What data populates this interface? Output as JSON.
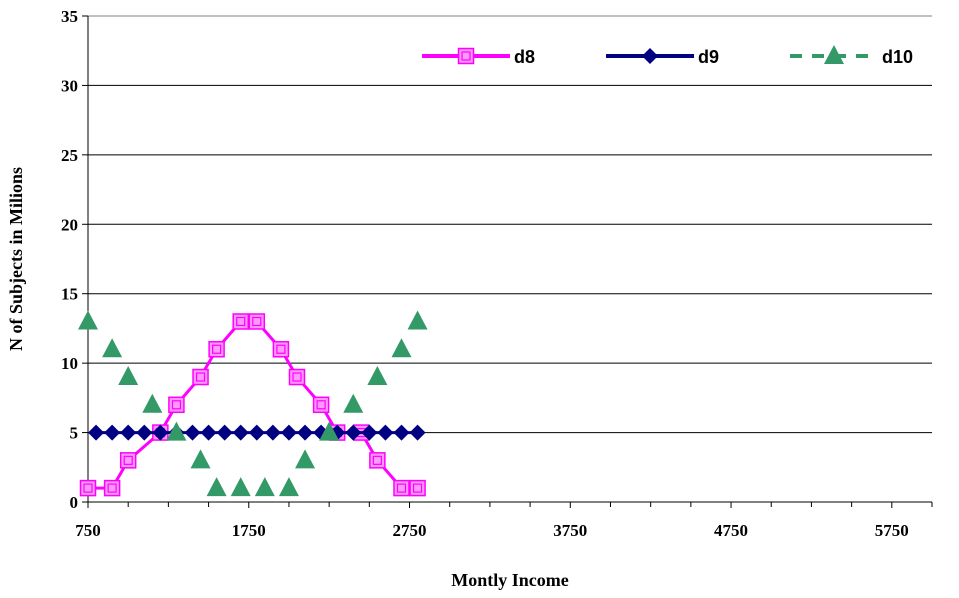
{
  "chart_data": {
    "type": "line",
    "title": "",
    "xlabel": "Montly Income",
    "ylabel": "N of Subjects in Milions",
    "xlim": [
      750,
      6000
    ],
    "ylim": [
      0,
      35
    ],
    "x_ticks": [
      750,
      1750,
      2750,
      3750,
      4750,
      5750
    ],
    "y_ticks": [
      0,
      5,
      10,
      15,
      20,
      25,
      30,
      35
    ],
    "grid": "horizontal",
    "legend_position": "top-right",
    "x": [
      750,
      850,
      950,
      1050,
      1150,
      1250,
      1350,
      1450,
      1550,
      1650,
      1750,
      1850,
      1950,
      2050,
      2150,
      2250,
      2350,
      2450,
      2550,
      2650,
      2750,
      2850
    ],
    "series": [
      {
        "name": "d8",
        "color": "#ff00ff",
        "marker": "square",
        "line": "solid",
        "x": [
          750,
          900,
          1000,
          1200,
          1300,
          1450,
          1550,
          1700,
          1800,
          1950,
          2050,
          2200,
          2300,
          2450,
          2550,
          2700,
          2800
        ],
        "values": [
          1,
          1,
          3,
          5,
          7,
          9,
          11,
          13,
          13,
          11,
          9,
          7,
          5,
          5,
          3,
          1,
          1
        ]
      },
      {
        "name": "d9",
        "color": "#000080",
        "marker": "diamond",
        "line": "solid",
        "x": [
          800,
          900,
          1000,
          1100,
          1200,
          1300,
          1400,
          1500,
          1600,
          1700,
          1800,
          1900,
          2000,
          2100,
          2200,
          2300,
          2400,
          2500,
          2600,
          2700,
          2800
        ],
        "values": [
          5,
          5,
          5,
          5,
          5,
          5,
          5,
          5,
          5,
          5,
          5,
          5,
          5,
          5,
          5,
          5,
          5,
          5,
          5,
          5,
          5
        ]
      },
      {
        "name": "d10",
        "color": "#339966",
        "marker": "triangle",
        "line": "dashed",
        "x": [
          750,
          900,
          1000,
          1150,
          1300,
          1450,
          1550,
          1700,
          1850,
          2000,
          2100,
          2250,
          2400,
          2550,
          2700,
          2800
        ],
        "values": [
          13,
          11,
          9,
          7,
          5,
          3,
          1,
          1,
          1,
          1,
          3,
          5,
          7,
          9,
          11,
          13
        ]
      }
    ]
  }
}
